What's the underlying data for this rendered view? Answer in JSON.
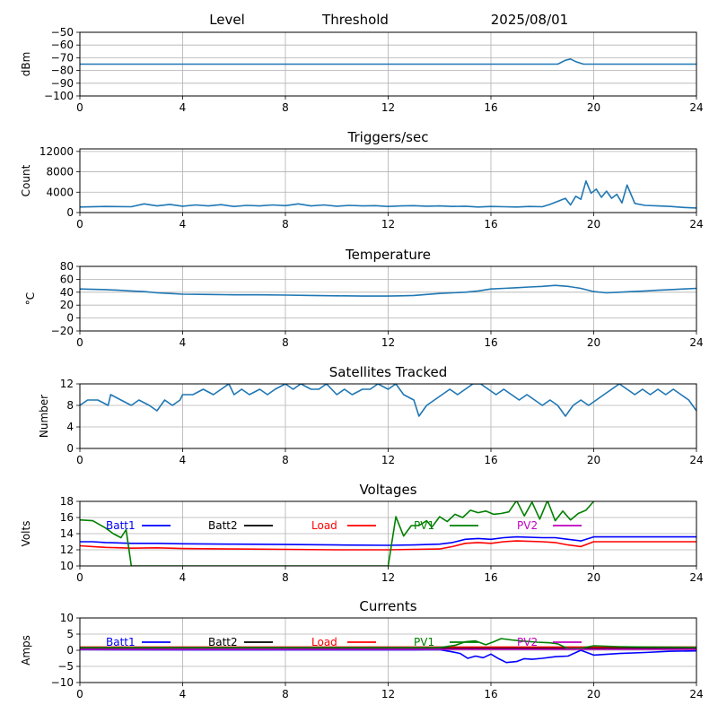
{
  "header": {
    "level_label": "Level",
    "threshold_label": "Threshold",
    "date": "2025/08/01"
  },
  "chart_data": [
    {
      "id": "level",
      "type": "line",
      "title": "",
      "xlabel": "",
      "ylabel": "dBm",
      "xlim": [
        0,
        24
      ],
      "ylim": [
        -100,
        -50
      ],
      "xticks": [
        0,
        4,
        8,
        12,
        16,
        20,
        24
      ],
      "yticks": [
        -100,
        -90,
        -80,
        -70,
        -60,
        -50
      ],
      "grid": true,
      "series": [
        {
          "color": "#1f77b4",
          "x": [
            0,
            2,
            4,
            6,
            8,
            10,
            12,
            14,
            16,
            17,
            18,
            18.6,
            18.9,
            19.1,
            19.3,
            19.6,
            20,
            22,
            24
          ],
          "y": [
            -75,
            -75,
            -75,
            -75,
            -75,
            -75,
            -75,
            -75,
            -75,
            -75,
            -75,
            -75,
            -72,
            -71,
            -73,
            -75,
            -75,
            -75,
            -75
          ]
        }
      ]
    },
    {
      "id": "triggers",
      "type": "line",
      "title": "Triggers/sec",
      "xlabel": "",
      "ylabel": "Count",
      "xlim": [
        0,
        24
      ],
      "ylim": [
        0,
        12500
      ],
      "xticks": [
        0,
        4,
        8,
        12,
        16,
        20,
        24
      ],
      "yticks": [
        0,
        4000,
        8000,
        12000
      ],
      "grid": true,
      "series": [
        {
          "color": "#1f77b4",
          "x": [
            0,
            1,
            2,
            2.5,
            3,
            3.5,
            4,
            4.5,
            5,
            5.5,
            6,
            6.5,
            7,
            7.5,
            8,
            8.5,
            9,
            9.5,
            10,
            10.5,
            11,
            11.5,
            12,
            12.5,
            13,
            13.5,
            14,
            14.5,
            15,
            15.5,
            16,
            16.5,
            17,
            17.5,
            18,
            18.3,
            18.6,
            18.9,
            19.1,
            19.3,
            19.5,
            19.7,
            19.9,
            20.1,
            20.3,
            20.5,
            20.7,
            20.9,
            21.1,
            21.3,
            21.6,
            22,
            22.5,
            23,
            23.5,
            24
          ],
          "y": [
            1100,
            1200,
            1150,
            1700,
            1300,
            1600,
            1250,
            1500,
            1300,
            1550,
            1200,
            1400,
            1300,
            1500,
            1350,
            1700,
            1300,
            1500,
            1250,
            1400,
            1300,
            1350,
            1200,
            1300,
            1350,
            1250,
            1300,
            1200,
            1250,
            1100,
            1200,
            1150,
            1100,
            1200,
            1150,
            1600,
            2200,
            2800,
            1500,
            3200,
            2600,
            6200,
            3800,
            4600,
            3000,
            4200,
            2800,
            3600,
            1900,
            5400,
            1800,
            1400,
            1300,
            1200,
            1000,
            900
          ]
        }
      ]
    },
    {
      "id": "temperature",
      "type": "line",
      "title": "Temperature",
      "xlabel": "",
      "ylabel": "°C",
      "xlim": [
        0,
        24
      ],
      "ylim": [
        -20,
        80
      ],
      "xticks": [
        0,
        4,
        8,
        12,
        16,
        20,
        24
      ],
      "yticks": [
        -20,
        0,
        20,
        40,
        60,
        80
      ],
      "grid": true,
      "series": [
        {
          "color": "#1f77b4",
          "x": [
            0,
            0.5,
            1,
            1.5,
            2,
            2.5,
            3,
            3.5,
            4,
            5,
            6,
            7,
            8,
            9,
            10,
            11,
            12,
            12.5,
            13,
            13.5,
            14,
            14.5,
            15,
            15.5,
            16,
            16.5,
            17,
            17.5,
            18,
            18.5,
            19,
            19.5,
            20,
            20.5,
            21,
            21.5,
            22,
            22.5,
            23,
            23.5,
            24
          ],
          "y": [
            45,
            44.5,
            44,
            43,
            42,
            41,
            39,
            38,
            37,
            36.5,
            36,
            36,
            35.5,
            35,
            34.5,
            34,
            34,
            34.5,
            35,
            36.5,
            38,
            39,
            40,
            42,
            45,
            46,
            47,
            48,
            49,
            50.5,
            49,
            46,
            41,
            39,
            40,
            41,
            42,
            43,
            44,
            45,
            46
          ]
        }
      ]
    },
    {
      "id": "satellites",
      "type": "line",
      "title": "Satellites Tracked",
      "xlabel": "",
      "ylabel": "Number",
      "xlim": [
        0,
        24
      ],
      "ylim": [
        0,
        12
      ],
      "xticks": [
        0,
        4,
        8,
        12,
        16,
        20,
        24
      ],
      "yticks": [
        0,
        4,
        8,
        12
      ],
      "grid": true,
      "series": [
        {
          "color": "#1f77b4",
          "x": [
            0,
            0.3,
            0.7,
            1.1,
            1.2,
            1.6,
            2.0,
            2.3,
            2.7,
            3.0,
            3.3,
            3.6,
            3.9,
            4.0,
            4.4,
            4.8,
            5.2,
            5.5,
            5.8,
            6.0,
            6.3,
            6.6,
            7.0,
            7.3,
            7.6,
            8.0,
            8.3,
            8.6,
            9.0,
            9.3,
            9.6,
            10.0,
            10.3,
            10.6,
            11.0,
            11.3,
            11.6,
            12.0,
            12.3,
            12.6,
            13.0,
            13.2,
            13.5,
            13.8,
            14.1,
            14.4,
            14.7,
            15.0,
            15.3,
            15.6,
            15.9,
            16.2,
            16.5,
            16.8,
            17.1,
            17.4,
            17.7,
            18.0,
            18.3,
            18.6,
            18.9,
            19.2,
            19.5,
            19.8,
            20.1,
            20.4,
            20.7,
            21.0,
            21.3,
            21.6,
            21.9,
            22.2,
            22.5,
            22.8,
            23.1,
            23.4,
            23.7,
            24.0
          ],
          "y": [
            8,
            9,
            9,
            8,
            10,
            9,
            8,
            9,
            8,
            7,
            9,
            8,
            9,
            10,
            10,
            11,
            10,
            11,
            12,
            10,
            11,
            10,
            11,
            10,
            11,
            12,
            11,
            12,
            11,
            11,
            12,
            10,
            11,
            10,
            11,
            11,
            12,
            11,
            12,
            10,
            9,
            6,
            8,
            9,
            10,
            11,
            10,
            11,
            12,
            12,
            11,
            10,
            11,
            10,
            9,
            10,
            9,
            8,
            9,
            8,
            6,
            8,
            9,
            8,
            9,
            10,
            11,
            12,
            11,
            10,
            11,
            10,
            11,
            10,
            11,
            10,
            9,
            7
          ]
        }
      ]
    },
    {
      "id": "voltages",
      "type": "line",
      "title": "Voltages",
      "xlabel": "",
      "ylabel": "Volts",
      "xlim": [
        0,
        24
      ],
      "ylim": [
        10,
        18
      ],
      "xticks": [
        0,
        4,
        8,
        12,
        16,
        20,
        24
      ],
      "yticks": [
        10,
        12,
        14,
        16,
        18
      ],
      "grid": true,
      "legend": "top, inline",
      "series": [
        {
          "name": "Batt1",
          "color": "#0000ff",
          "x": [
            0,
            0.5,
            1,
            2,
            3,
            4,
            6,
            8,
            10,
            12,
            13,
            14,
            14.5,
            15,
            15.5,
            16,
            16.5,
            17,
            18,
            18.5,
            19,
            19.5,
            20,
            21,
            22,
            24
          ],
          "y": [
            13,
            13,
            12.9,
            12.8,
            12.8,
            12.75,
            12.7,
            12.65,
            12.6,
            12.55,
            12.6,
            12.7,
            12.9,
            13.3,
            13.4,
            13.3,
            13.5,
            13.6,
            13.5,
            13.5,
            13.3,
            13.1,
            13.6,
            13.6,
            13.6,
            13.6
          ]
        },
        {
          "name": "Batt2",
          "color": "#000000",
          "x": [],
          "y": []
        },
        {
          "name": "Load",
          "color": "#ff0000",
          "x": [
            0,
            0.5,
            1,
            2,
            3,
            4,
            6,
            8,
            10,
            12,
            13,
            14,
            14.5,
            15,
            15.5,
            16,
            16.5,
            17,
            18,
            18.5,
            19,
            19.5,
            20,
            21,
            22,
            24
          ],
          "y": [
            12.5,
            12.4,
            12.3,
            12.2,
            12.25,
            12.15,
            12.1,
            12.05,
            12.0,
            12.0,
            12.05,
            12.1,
            12.4,
            12.8,
            12.9,
            12.8,
            13.0,
            13.1,
            13.0,
            12.9,
            12.6,
            12.4,
            13.0,
            13.0,
            13.0,
            13.0
          ]
        },
        {
          "name": "PV1",
          "color": "#008000",
          "x": [
            0,
            0.5,
            1,
            1.3,
            1.6,
            1.8,
            2.0,
            12.0,
            12.3,
            12.6,
            12.9,
            13.2,
            13.5,
            13.7,
            14.0,
            14.3,
            14.6,
            14.9,
            15.2,
            15.5,
            15.8,
            16.1,
            16.4,
            16.7,
            17.0,
            17.3,
            17.6,
            17.9,
            18.2,
            18.5,
            18.8,
            19.1,
            19.4,
            19.7,
            20.0,
            20.3
          ],
          "y": [
            15.7,
            15.6,
            14.7,
            14.0,
            13.5,
            14.5,
            10.0,
            10.0,
            16.1,
            13.7,
            15.0,
            15.0,
            15.6,
            14.8,
            16.1,
            15.5,
            16.4,
            16.0,
            16.9,
            16.6,
            16.8,
            16.4,
            16.5,
            16.7,
            18.1,
            16.2,
            17.9,
            15.8,
            18.1,
            15.6,
            16.8,
            15.7,
            16.5,
            16.9,
            18.0,
            18.2
          ]
        },
        {
          "name": "PV2",
          "color": "#bf00bf",
          "x": [],
          "y": []
        }
      ]
    },
    {
      "id": "currents",
      "type": "line",
      "title": "Currents",
      "xlabel": "",
      "ylabel": "Amps",
      "xlim": [
        0,
        24
      ],
      "ylim": [
        -10,
        10
      ],
      "xticks": [
        0,
        4,
        8,
        12,
        16,
        20,
        24
      ],
      "yticks": [
        -10,
        -5,
        0,
        5,
        10
      ],
      "grid": true,
      "legend": "top, inline",
      "series": [
        {
          "name": "Batt1",
          "color": "#0000ff",
          "x": [
            0,
            4,
            8,
            12,
            13,
            14,
            14.5,
            14.8,
            15.1,
            15.4,
            15.7,
            16.0,
            16.3,
            16.6,
            17.0,
            17.3,
            17.6,
            18.0,
            18.5,
            19.0,
            19.5,
            20.0,
            21.0,
            22.0,
            23.0,
            24.0
          ],
          "y": [
            0.2,
            0.1,
            0.1,
            0.1,
            0.1,
            0.2,
            -0.5,
            -1.0,
            -2.5,
            -1.8,
            -2.3,
            -1.2,
            -2.6,
            -3.8,
            -3.5,
            -2.6,
            -2.8,
            -2.5,
            -2.0,
            -1.8,
            0.0,
            -1.5,
            -1.0,
            -0.7,
            -0.3,
            -0.2
          ]
        },
        {
          "name": "Batt2",
          "color": "#000000",
          "x": [
            0,
            6,
            12,
            18,
            24
          ],
          "y": [
            0.6,
            0.7,
            0.6,
            0.6,
            0.6
          ]
        },
        {
          "name": "Load",
          "color": "#ff0000",
          "x": [
            0,
            6,
            12,
            18,
            24
          ],
          "y": [
            1.0,
            1.0,
            1.0,
            1.0,
            1.0
          ]
        },
        {
          "name": "PV1",
          "color": "#008000",
          "x": [
            0,
            12,
            14,
            14.6,
            15.0,
            15.4,
            15.8,
            16.1,
            16.4,
            16.8,
            17.3,
            17.8,
            18.3,
            18.6,
            19.0,
            19.5,
            20.0,
            21.0,
            22.0,
            24.0
          ],
          "y": [
            0.8,
            0.8,
            0.8,
            1.5,
            2.6,
            2.9,
            1.7,
            2.6,
            3.6,
            3.2,
            2.8,
            2.5,
            2.3,
            2.0,
            0.5,
            0.6,
            1.4,
            1.1,
            1.0,
            0.9
          ]
        },
        {
          "name": "PV2",
          "color": "#bf00bf",
          "x": [
            0,
            6,
            12,
            18,
            24
          ],
          "y": [
            0.3,
            0.3,
            0.3,
            0.3,
            0.3
          ]
        }
      ]
    }
  ]
}
